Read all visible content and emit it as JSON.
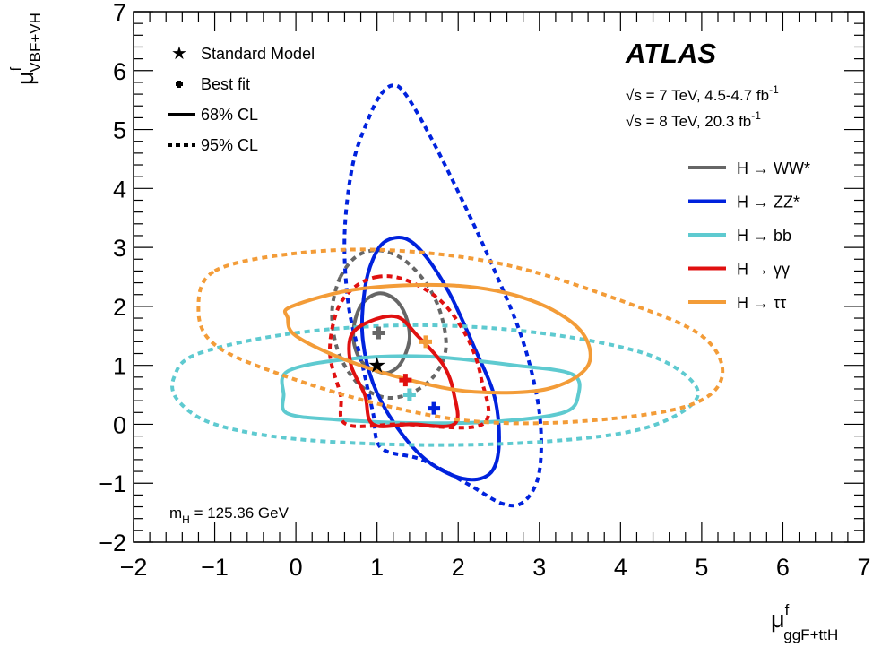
{
  "chart_data": {
    "type": "contour",
    "title": "",
    "xlabel": {
      "main": "μ",
      "sup": "f",
      "sub": "ggF+ttH"
    },
    "ylabel": {
      "main": "μ",
      "sup": "f",
      "sub": "VBF+VH"
    },
    "xlim": [
      -2,
      7
    ],
    "ylim": [
      -2,
      7
    ],
    "x_ticks": [
      {
        "value": -2,
        "label": "−2"
      },
      {
        "value": -1,
        "label": "−1"
      },
      {
        "value": 0,
        "label": "0"
      },
      {
        "value": 1,
        "label": "1"
      },
      {
        "value": 2,
        "label": "2"
      },
      {
        "value": 3,
        "label": "3"
      },
      {
        "value": 4,
        "label": "4"
      },
      {
        "value": 5,
        "label": "5"
      },
      {
        "value": 6,
        "label": "6"
      },
      {
        "value": 7,
        "label": "7"
      }
    ],
    "y_ticks": [
      {
        "value": -2,
        "label": "−2"
      },
      {
        "value": -1,
        "label": "−1"
      },
      {
        "value": 0,
        "label": "0"
      },
      {
        "value": 1,
        "label": "1"
      },
      {
        "value": 2,
        "label": "2"
      },
      {
        "value": 3,
        "label": "3"
      },
      {
        "value": 4,
        "label": "4"
      },
      {
        "value": 5,
        "label": "5"
      },
      {
        "value": 6,
        "label": "6"
      },
      {
        "value": 7,
        "label": "7"
      }
    ],
    "experiment": "ATLAS",
    "energy_lines": [
      {
        "sqrt": "√s",
        "text": " = 7 TeV, 4.5-4.7 fb",
        "sup": "-1"
      },
      {
        "sqrt": "√s",
        "text": " = 8 TeV, 20.3 fb",
        "sup": "-1"
      }
    ],
    "mass_label": {
      "m": "m",
      "sub": "H",
      "text": " = 125.36 GeV"
    },
    "style_legend": {
      "sm": "Standard Model",
      "bestfit": "Best fit",
      "cl68": "68% CL",
      "cl95": "95% CL"
    },
    "standard_model": {
      "x": 1,
      "y": 1
    },
    "series": [
      {
        "name": "H → WW*",
        "color": "#666666",
        "best_fit": [
          1.02,
          1.55
        ],
        "cl68": [
          [
            0.82,
            2.05
          ],
          [
            1.02,
            2.22
          ],
          [
            1.22,
            2.12
          ],
          [
            1.35,
            1.85
          ],
          [
            1.4,
            1.45
          ],
          [
            1.3,
            1.05
          ],
          [
            1.15,
            0.88
          ],
          [
            1.0,
            0.9
          ],
          [
            0.82,
            1.05
          ],
          [
            0.72,
            1.35
          ],
          [
            0.72,
            1.7
          ]
        ],
        "cl95": [
          [
            0.55,
            2.5
          ],
          [
            0.75,
            2.85
          ],
          [
            1.02,
            2.95
          ],
          [
            1.32,
            2.8
          ],
          [
            1.6,
            2.4
          ],
          [
            1.78,
            1.9
          ],
          [
            1.85,
            1.3
          ],
          [
            1.72,
            0.85
          ],
          [
            1.45,
            0.55
          ],
          [
            1.12,
            0.45
          ],
          [
            0.8,
            0.65
          ],
          [
            0.58,
            1.05
          ],
          [
            0.47,
            1.5
          ],
          [
            0.45,
            2.0
          ]
        ]
      },
      {
        "name": "H → ZZ*",
        "color": "#0022dd",
        "best_fit": [
          1.7,
          0.27
        ],
        "cl68": [
          [
            1.1,
            3.1
          ],
          [
            1.35,
            3.15
          ],
          [
            1.6,
            2.85
          ],
          [
            1.9,
            2.2
          ],
          [
            2.2,
            1.3
          ],
          [
            2.45,
            0.45
          ],
          [
            2.5,
            -0.4
          ],
          [
            2.38,
            -0.85
          ],
          [
            2.05,
            -0.92
          ],
          [
            1.6,
            -0.6
          ],
          [
            1.22,
            0.0
          ],
          [
            0.95,
            0.7
          ],
          [
            0.82,
            1.5
          ],
          [
            0.85,
            2.3
          ],
          [
            0.95,
            2.8
          ]
        ],
        "cl95": [
          [
            1.05,
            5.6
          ],
          [
            1.2,
            5.75
          ],
          [
            1.35,
            5.6
          ],
          [
            1.65,
            4.9
          ],
          [
            2.05,
            3.8
          ],
          [
            2.45,
            2.6
          ],
          [
            2.8,
            1.4
          ],
          [
            3.0,
            0.2
          ],
          [
            3.0,
            -0.8
          ],
          [
            2.82,
            -1.3
          ],
          [
            2.55,
            -1.35
          ],
          [
            2.1,
            -1.0
          ],
          [
            1.55,
            -0.6
          ],
          [
            1.05,
            -0.4
          ],
          [
            0.95,
            0.2
          ],
          [
            0.82,
            1.0
          ],
          [
            0.65,
            2.0
          ],
          [
            0.6,
            3.2
          ],
          [
            0.7,
            4.4
          ],
          [
            0.9,
            5.2
          ]
        ]
      },
      {
        "name": "H → bb",
        "color": "#5ecad0",
        "best_fit": [
          1.4,
          0.5
        ],
        "cl68": [
          [
            -0.1,
            0.9
          ],
          [
            0.6,
            1.1
          ],
          [
            1.6,
            1.15
          ],
          [
            2.7,
            1.0
          ],
          [
            3.4,
            0.85
          ],
          [
            3.48,
            0.5
          ],
          [
            3.3,
            0.2
          ],
          [
            2.5,
            0.05
          ],
          [
            1.5,
            0.02
          ],
          [
            0.5,
            0.08
          ],
          [
            -0.1,
            0.18
          ],
          [
            -0.15,
            0.5
          ]
        ],
        "cl95": [
          [
            -1.2,
            1.2
          ],
          [
            0.0,
            1.55
          ],
          [
            1.5,
            1.68
          ],
          [
            3.0,
            1.55
          ],
          [
            4.3,
            1.2
          ],
          [
            4.9,
            0.7
          ],
          [
            4.85,
            0.3
          ],
          [
            4.2,
            -0.1
          ],
          [
            3.0,
            -0.3
          ],
          [
            1.5,
            -0.35
          ],
          [
            0.0,
            -0.25
          ],
          [
            -1.0,
            0.0
          ],
          [
            -1.45,
            0.4
          ],
          [
            -1.5,
            0.8
          ]
        ]
      },
      {
        "name": "H → γγ",
        "color": "#e01010",
        "best_fit": [
          1.35,
          0.75
        ],
        "cl68": [
          [
            0.92,
            1.75
          ],
          [
            1.25,
            1.82
          ],
          [
            1.5,
            1.5
          ],
          [
            1.82,
            1.0
          ],
          [
            1.95,
            0.5
          ],
          [
            1.95,
            0.0
          ],
          [
            1.42,
            0.0
          ],
          [
            0.95,
            0.0
          ],
          [
            0.85,
            0.5
          ],
          [
            0.68,
            1.0
          ],
          [
            0.68,
            1.5
          ]
        ],
        "cl95": [
          [
            1.0,
            2.5
          ],
          [
            1.35,
            2.45
          ],
          [
            1.78,
            2.1
          ],
          [
            2.1,
            1.5
          ],
          [
            2.28,
            0.8
          ],
          [
            2.3,
            0.0
          ],
          [
            1.3,
            0.0
          ],
          [
            0.62,
            0.0
          ],
          [
            0.55,
            0.5
          ],
          [
            0.42,
            1.2
          ],
          [
            0.5,
            1.9
          ],
          [
            0.7,
            2.3
          ]
        ]
      },
      {
        "name": "H → ττ",
        "color": "#f39c38",
        "best_fit": [
          1.6,
          1.4
        ],
        "cl68": [
          [
            -0.05,
            2.0
          ],
          [
            0.8,
            2.3
          ],
          [
            2.0,
            2.35
          ],
          [
            2.9,
            2.1
          ],
          [
            3.5,
            1.6
          ],
          [
            3.6,
            1.0
          ],
          [
            3.1,
            0.6
          ],
          [
            2.2,
            0.55
          ],
          [
            1.4,
            0.75
          ],
          [
            0.6,
            1.1
          ],
          [
            0.0,
            1.5
          ],
          [
            -0.1,
            1.8
          ]
        ],
        "cl95": [
          [
            -1.0,
            2.6
          ],
          [
            0.0,
            2.9
          ],
          [
            1.2,
            2.95
          ],
          [
            2.6,
            2.7
          ],
          [
            4.0,
            2.1
          ],
          [
            5.0,
            1.5
          ],
          [
            5.25,
            0.8
          ],
          [
            4.8,
            0.3
          ],
          [
            3.5,
            0.05
          ],
          [
            2.2,
            0.05
          ],
          [
            1.0,
            0.35
          ],
          [
            -0.2,
            0.85
          ],
          [
            -1.0,
            1.35
          ],
          [
            -1.2,
            1.95
          ]
        ]
      }
    ]
  }
}
